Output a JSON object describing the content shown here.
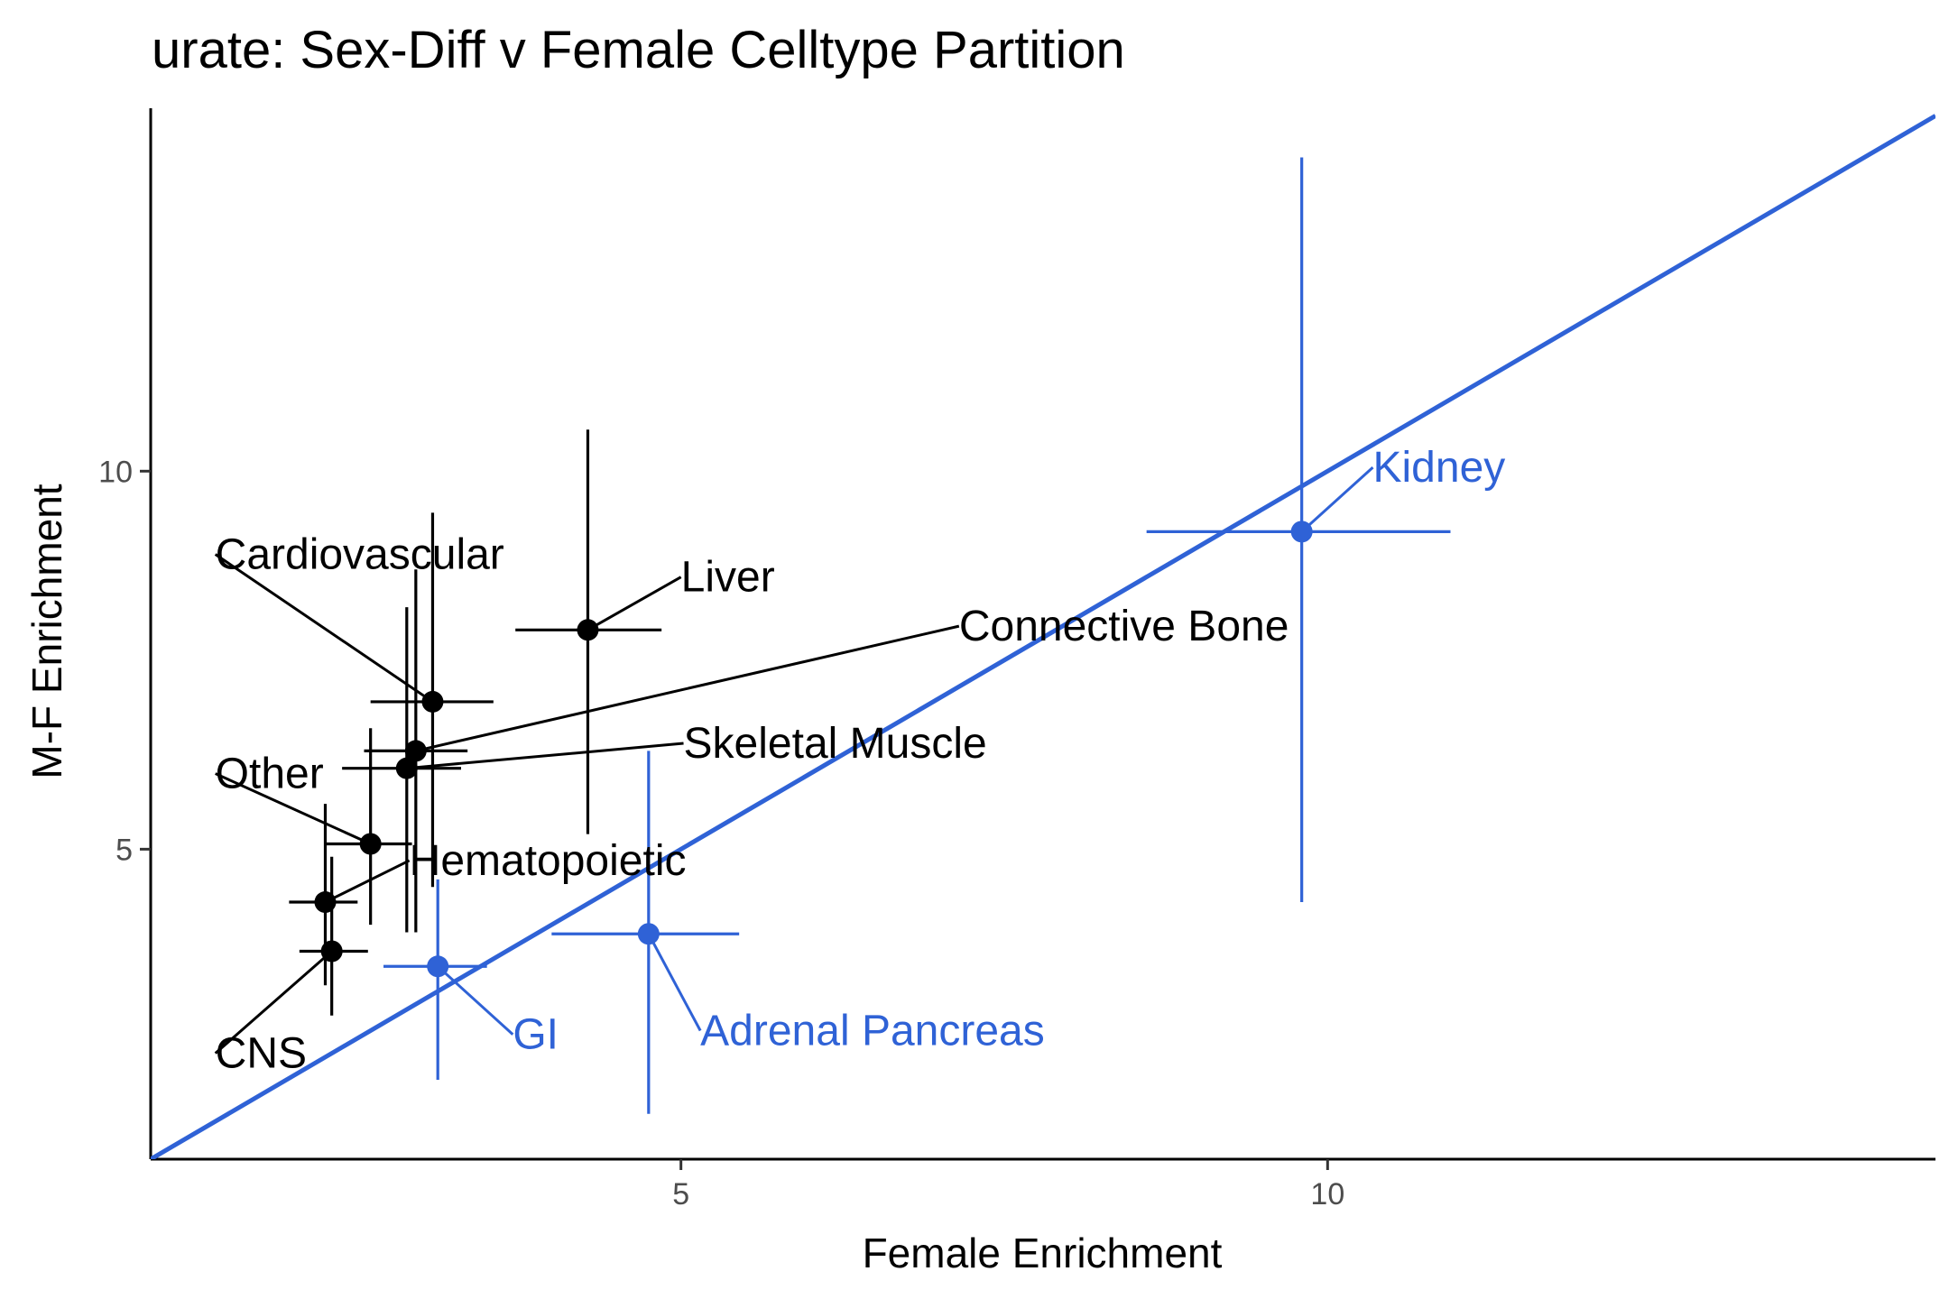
{
  "chart_data": {
    "type": "scatter",
    "title": "urate: Sex-Diff v Female Celltype Partition",
    "xlabel": "Female Enrichment",
    "ylabel": "M-F Enrichment",
    "xlim": [
      0.9,
      14.7
    ],
    "ylim": [
      0.9,
      14.8
    ],
    "x_ticks": [
      5,
      10
    ],
    "x_tick_labels": [
      "5",
      "10"
    ],
    "y_ticks": [
      5,
      10
    ],
    "y_tick_labels": [
      "5",
      "10"
    ],
    "grid": false,
    "legend": "none",
    "colors": {
      "default": "#000000",
      "highlight": "#2f62d6"
    },
    "reference_line": {
      "slope": 1,
      "intercept": 0,
      "color": "#2f62d6"
    },
    "points": [
      {
        "label": "Liver",
        "x": 4.28,
        "y": 7.9,
        "x_err": [
          3.72,
          4.85
        ],
        "y_err": [
          5.2,
          10.55
        ],
        "highlight": false,
        "label_pos": [
          5.0,
          8.6
        ]
      },
      {
        "label": "Cardiovascular",
        "x": 3.08,
        "y": 6.95,
        "x_err": [
          2.6,
          3.55
        ],
        "y_err": [
          4.5,
          9.45
        ],
        "highlight": false,
        "label_pos": [
          1.4,
          8.9
        ]
      },
      {
        "label": "Connective Bone",
        "x": 2.95,
        "y": 6.3,
        "x_err": [
          2.55,
          3.35
        ],
        "y_err": [
          3.9,
          8.7
        ],
        "highlight": false,
        "label_pos": [
          7.15,
          7.95
        ]
      },
      {
        "label": "Skeletal Muscle",
        "x": 2.88,
        "y": 6.07,
        "x_err": [
          2.38,
          3.3
        ],
        "y_err": [
          3.9,
          8.2
        ],
        "highlight": false,
        "label_pos": [
          5.02,
          6.4
        ]
      },
      {
        "label": "Other",
        "x": 2.6,
        "y": 5.07,
        "x_err": [
          2.25,
          2.92
        ],
        "y_err": [
          4.0,
          6.6
        ],
        "highlight": false,
        "label_pos": [
          1.4,
          6.0
        ]
      },
      {
        "label": "Hematopoietic",
        "x": 2.25,
        "y": 4.3,
        "x_err": [
          1.97,
          2.5
        ],
        "y_err": [
          3.2,
          5.6
        ],
        "highlight": false,
        "label_pos": [
          2.9,
          4.85
        ]
      },
      {
        "label": "CNS",
        "x": 2.3,
        "y": 3.65,
        "x_err": [
          2.05,
          2.58
        ],
        "y_err": [
          2.8,
          4.9
        ],
        "highlight": false,
        "label_pos": [
          1.4,
          2.3
        ]
      },
      {
        "label": "GI",
        "x": 3.12,
        "y": 3.45,
        "x_err": [
          2.7,
          3.5
        ],
        "y_err": [
          1.95,
          4.6
        ],
        "highlight": true,
        "label_pos": [
          3.7,
          2.55
        ]
      },
      {
        "label": "Adrenal Pancreas",
        "x": 4.75,
        "y": 3.88,
        "x_err": [
          4.0,
          5.45
        ],
        "y_err": [
          1.5,
          6.3
        ],
        "highlight": true,
        "label_pos": [
          5.15,
          2.6
        ]
      },
      {
        "label": "Kidney",
        "x": 9.8,
        "y": 9.2,
        "x_err": [
          8.6,
          10.95
        ],
        "y_err": [
          4.3,
          14.15
        ],
        "highlight": true,
        "label_pos": [
          10.35,
          10.05
        ]
      }
    ]
  }
}
